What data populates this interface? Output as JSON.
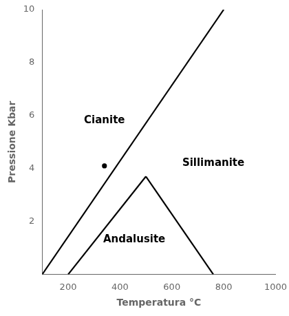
{
  "chart_data": {
    "type": "line",
    "xlabel": "Temperatura °C",
    "ylabel": "Pressione Kbar",
    "xlim": [
      100,
      1000
    ],
    "ylim": [
      0,
      10
    ],
    "xticks": [
      200,
      400,
      600,
      800,
      1000
    ],
    "yticks": [
      2,
      4,
      6,
      8,
      10
    ],
    "grid": false,
    "series": [
      {
        "color": "#000000",
        "x": [
          100,
          800
        ],
        "values": [
          0,
          10
        ]
      },
      {
        "color": "#000000",
        "x": [
          200,
          500
        ],
        "values": [
          0,
          3.7
        ]
      },
      {
        "color": "#000000",
        "x": [
          500,
          760
        ],
        "values": [
          3.7,
          0
        ]
      },
      {
        "color": "#000000",
        "x": [
          340
        ],
        "values": [
          4.1
        ],
        "marker": "point",
        "line_style": "none"
      }
    ],
    "annotations": [
      {
        "text": "Cianite",
        "x": 340,
        "y": 5.8
      },
      {
        "text": "Sillimanite",
        "x": 760,
        "y": 4.2
      },
      {
        "text": "Andalusite",
        "x": 455,
        "y": 1.3
      }
    ]
  }
}
